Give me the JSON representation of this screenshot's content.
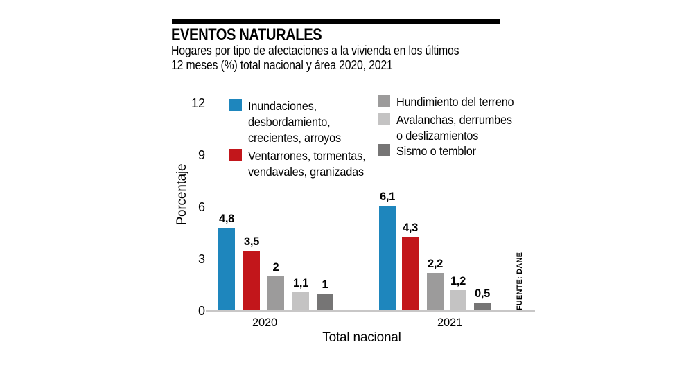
{
  "header": {
    "title": "EVENTOS NATURALES",
    "subtitle_line1": "Hogares por tipo de afectaciones a la vivienda en los últimos",
    "subtitle_line2": "12 meses (%) total nacional y área 2020, 2021"
  },
  "source": "FUENTE: DANE",
  "colors": {
    "blue": "#1e86bd",
    "red": "#c2161b",
    "gray": "#9c9b9b",
    "light_gray": "#c4c3c3",
    "dark_gray": "#767575",
    "axis_line": "#c8c7c7",
    "rule": "#000000"
  },
  "legend": {
    "items": [
      {
        "color": "#1e86bd",
        "lines": [
          "Inundaciones,",
          "desbordamiento,",
          "crecientes, arroyos"
        ]
      },
      {
        "color": "#c2161b",
        "lines": [
          "Ventarrones, tormentas,",
          "vendavales, granizadas"
        ]
      },
      {
        "color": "#9c9b9b",
        "lines": [
          "Hundimiento del terreno"
        ]
      },
      {
        "color": "#c4c3c3",
        "lines": [
          "Avalanchas, derrumbes",
          "o deslizamientos"
        ]
      },
      {
        "color": "#767575",
        "lines": [
          "Sismo o temblor"
        ]
      }
    ]
  },
  "chart_data": {
    "type": "bar",
    "title": "EVENTOS NATURALES",
    "subtitle": "Hogares por tipo de afectaciones a la vivienda en los últimos 12 meses (%) total nacional y área 2020, 2021",
    "xlabel": "Total nacional",
    "ylabel": "Porcentaje",
    "ylim": [
      0,
      12
    ],
    "yticks": [
      0,
      3,
      6,
      9,
      12
    ],
    "grid": false,
    "legend_position": "top",
    "categories": [
      "2020",
      "2021"
    ],
    "series": [
      {
        "name": "Inundaciones, desbordamiento, crecientes, arroyos",
        "color": "#1e86bd",
        "values": [
          4.8,
          6.1
        ],
        "value_labels": [
          "4,8",
          "6,1"
        ]
      },
      {
        "name": "Ventarrones, tormentas, vendavales, granizadas",
        "color": "#c2161b",
        "values": [
          3.5,
          4.3
        ],
        "value_labels": [
          "3,5",
          "4,3"
        ]
      },
      {
        "name": "Hundimiento del terreno",
        "color": "#9c9b9b",
        "values": [
          2.0,
          2.2
        ],
        "value_labels": [
          "2",
          "2,2"
        ]
      },
      {
        "name": "Avalanchas, derrumbes o deslizamientos",
        "color": "#c4c3c3",
        "values": [
          1.1,
          1.2
        ],
        "value_labels": [
          "1,1",
          "1,2"
        ]
      },
      {
        "name": "Sismo o temblor",
        "color": "#767575",
        "values": [
          1.0,
          0.5
        ],
        "value_labels": [
          "1",
          "0,5"
        ]
      }
    ],
    "source": "FUENTE: DANE"
  }
}
